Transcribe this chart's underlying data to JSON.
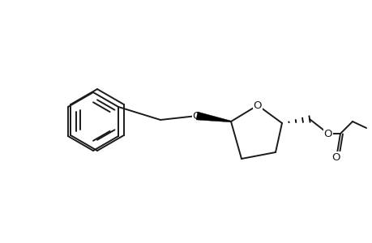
{
  "bg_color": "#ffffff",
  "line_color": "#1a1a1a",
  "lw": 1.4,
  "figsize": [
    4.6,
    3.0
  ],
  "dpi": 100,
  "xlim": [
    0,
    460
  ],
  "ylim": [
    0,
    300
  ]
}
